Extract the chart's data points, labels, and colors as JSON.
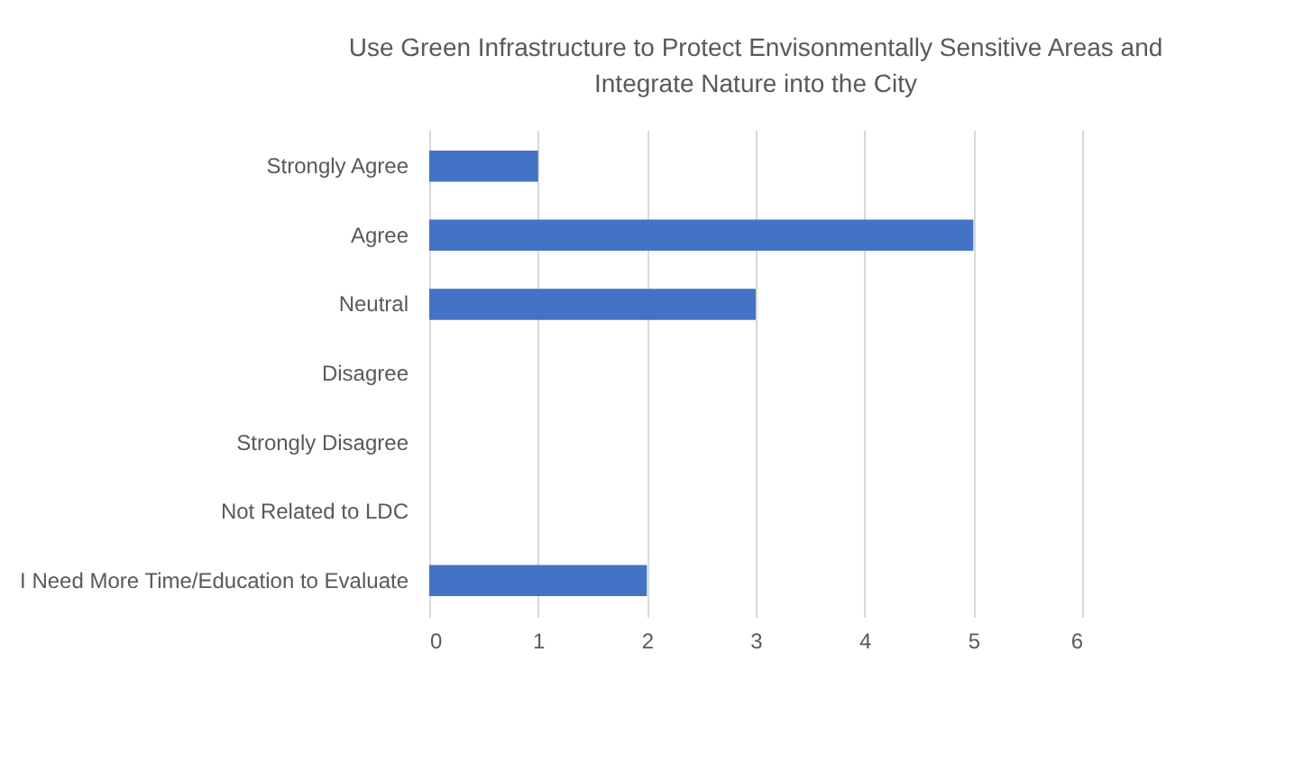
{
  "chart_data": {
    "type": "bar",
    "orientation": "horizontal",
    "title": "Use Green Infrastructure to Protect Envisonmentally Sensitive Areas and Integrate Nature into the City",
    "categories": [
      "Strongly Agree",
      "Agree",
      "Neutral",
      "Disagree",
      "Strongly Disagree",
      "Not Related to LDC",
      "I Need More Time/Education to Evaluate"
    ],
    "values": [
      1,
      5,
      3,
      0,
      0,
      0,
      2
    ],
    "color": "#4472c4",
    "xlim": [
      0,
      6
    ],
    "xticks": [
      0,
      1,
      2,
      3,
      4,
      5,
      6
    ],
    "grid": "x"
  }
}
